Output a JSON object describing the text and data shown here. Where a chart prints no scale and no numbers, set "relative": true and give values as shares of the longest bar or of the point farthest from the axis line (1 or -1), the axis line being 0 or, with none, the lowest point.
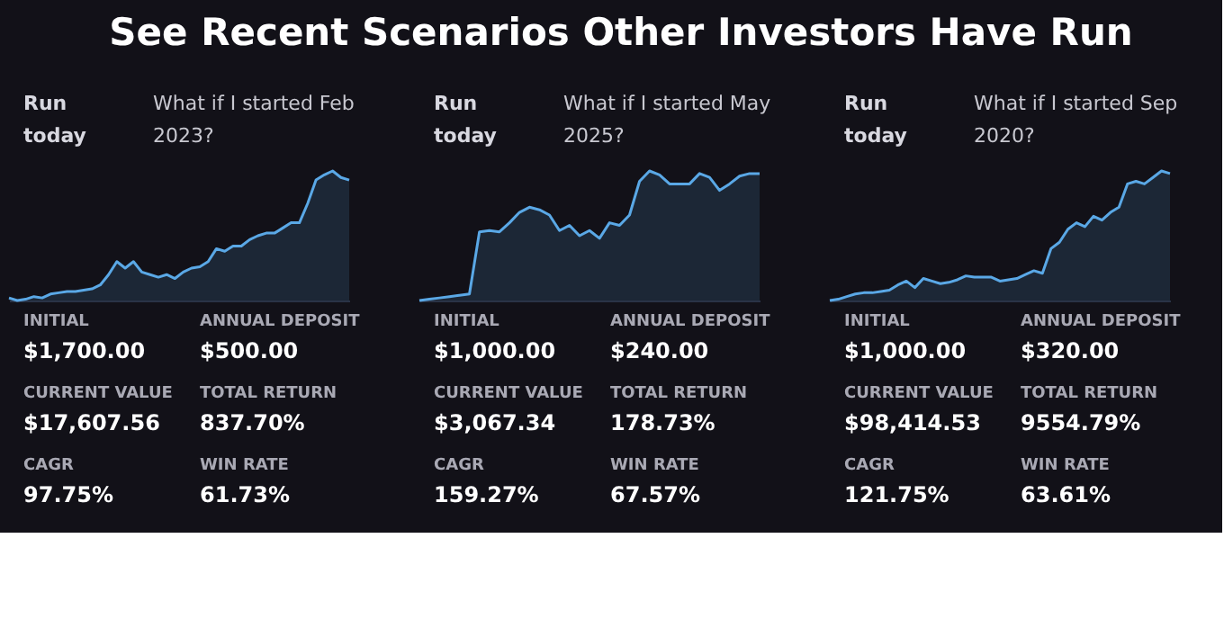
{
  "chart_data": [
    {
      "type": "other",
      "title": "See Recent Scenarios Other Investors Have Run"
    },
    {
      "type": "area",
      "relative": true,
      "title": "What if I started Feb 2023?",
      "annotations": [
        "Run today",
        "INITIAL",
        "$1,700.00",
        "ANNUAL DEPOSIT",
        "$500.00",
        "CURRENT VALUE",
        "$17,607.56",
        "TOTAL RETURN",
        "837.70%",
        "CAGR",
        "97.75%",
        "WIN RATE",
        "61.73%"
      ],
      "categories": [
        null,
        null,
        null,
        null,
        null,
        null,
        null,
        null,
        null,
        null,
        null,
        null,
        null,
        null,
        null,
        null,
        null,
        null,
        null,
        null,
        null,
        null,
        null,
        null,
        null,
        null,
        null,
        null,
        null,
        null,
        null,
        null,
        null,
        null,
        null,
        null,
        null,
        null,
        null,
        null,
        null,
        null
      ],
      "color": "#5aa8e6",
      "values": [
        0.02,
        0.0,
        0.01,
        0.03,
        0.02,
        0.05,
        0.06,
        0.07,
        0.07,
        0.08,
        0.09,
        0.12,
        0.2,
        0.3,
        0.25,
        0.3,
        0.22,
        0.2,
        0.18,
        0.2,
        0.17,
        0.22,
        0.25,
        0.26,
        0.3,
        0.4,
        0.38,
        0.42,
        0.42,
        0.47,
        0.5,
        0.52,
        0.52,
        0.56,
        0.6,
        0.6,
        0.75,
        0.93,
        0.97,
        1.0,
        0.95,
        0.93
      ]
    },
    {
      "type": "area",
      "relative": true,
      "title": "What if I started May 2025?",
      "annotations": [
        "Run today",
        "INITIAL",
        "$1,000.00",
        "ANNUAL DEPOSIT",
        "$240.00",
        "CURRENT VALUE",
        "$3,067.34",
        "TOTAL RETURN",
        "178.73%",
        "CAGR",
        "159.27%",
        "WIN RATE",
        "67.57%"
      ],
      "categories": [
        null,
        null,
        null,
        null,
        null,
        null,
        null,
        null,
        null,
        null,
        null,
        null,
        null,
        null,
        null,
        null,
        null,
        null,
        null,
        null,
        null,
        null,
        null,
        null,
        null,
        null,
        null,
        null,
        null,
        null,
        null,
        null,
        null,
        null,
        null
      ],
      "color": "#5aa8e6",
      "values": [
        0.0,
        0.01,
        0.02,
        0.03,
        0.04,
        0.05,
        0.53,
        0.54,
        0.53,
        0.6,
        0.68,
        0.72,
        0.7,
        0.66,
        0.54,
        0.58,
        0.5,
        0.54,
        0.48,
        0.6,
        0.58,
        0.66,
        0.92,
        1.0,
        0.97,
        0.9,
        0.9,
        0.9,
        0.98,
        0.95,
        0.85,
        0.9,
        0.96,
        0.98,
        0.98
      ]
    },
    {
      "type": "area",
      "relative": true,
      "title": "What if I started Sep 2020?",
      "annotations": [
        "Run today",
        "INITIAL",
        "$1,000.00",
        "ANNUAL DEPOSIT",
        "$320.00",
        "CURRENT VALUE",
        "$98,414.53",
        "TOTAL RETURN",
        "9554.79%",
        "CAGR",
        "121.75%",
        "WIN RATE",
        "63.61%"
      ],
      "categories": [
        null,
        null,
        null,
        null,
        null,
        null,
        null,
        null,
        null,
        null,
        null,
        null,
        null,
        null,
        null,
        null,
        null,
        null,
        null,
        null,
        null,
        null,
        null,
        null,
        null,
        null,
        null,
        null,
        null,
        null,
        null,
        null,
        null,
        null,
        null,
        null,
        null,
        null,
        null,
        null,
        null
      ],
      "color": "#5aa8e6",
      "values": [
        0.0,
        0.01,
        0.03,
        0.05,
        0.06,
        0.06,
        0.07,
        0.08,
        0.12,
        0.15,
        0.1,
        0.17,
        0.15,
        0.13,
        0.14,
        0.16,
        0.19,
        0.18,
        0.18,
        0.18,
        0.15,
        0.16,
        0.17,
        0.2,
        0.23,
        0.21,
        0.4,
        0.45,
        0.55,
        0.6,
        0.57,
        0.65,
        0.62,
        0.68,
        0.72,
        0.9,
        0.92,
        0.9,
        0.95,
        1.0,
        0.98
      ]
    }
  ]
}
